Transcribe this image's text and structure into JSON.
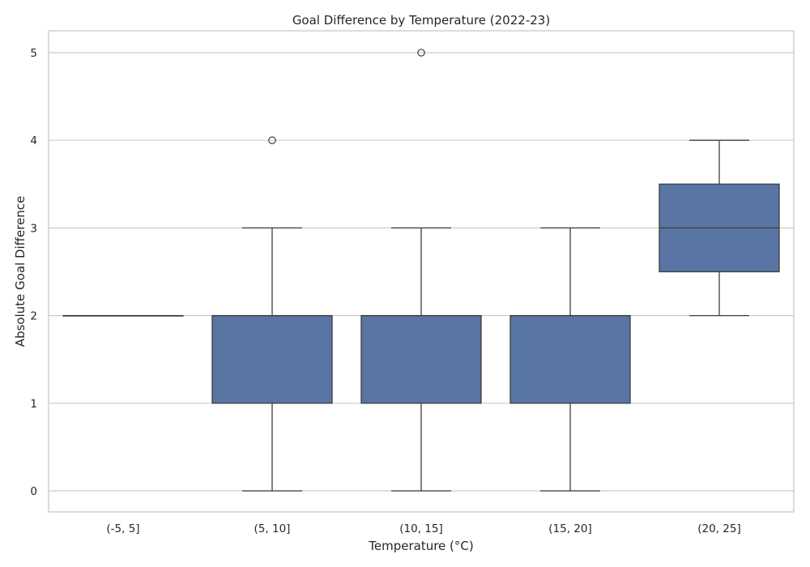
{
  "chart_data": {
    "type": "box",
    "title": "Goal Difference by Temperature (2022-23)",
    "xlabel": "Temperature (°C)",
    "ylabel": "Absolute Goal Difference",
    "ylim": [
      -0.25,
      5.25
    ],
    "yticks": [
      0,
      1,
      2,
      3,
      4,
      5
    ],
    "grid": "horizontal",
    "colors": {
      "box": "#5875a4",
      "line": "#3d3d3d",
      "grid": "#cccccc"
    },
    "categories": [
      "(-5, 5]",
      "(5, 10]",
      "(10, 15]",
      "(15, 20]",
      "(20, 25]"
    ],
    "boxes": [
      {
        "category": "(-5, 5]",
        "whisker_low": 2,
        "q1": 2,
        "median": 2,
        "q3": 2,
        "whisker_high": 2,
        "outliers": []
      },
      {
        "category": "(5, 10]",
        "whisker_low": 0,
        "q1": 1,
        "median": 2,
        "q3": 2,
        "whisker_high": 3,
        "outliers": [
          4
        ]
      },
      {
        "category": "(10, 15]",
        "whisker_low": 0,
        "q1": 1,
        "median": 2,
        "q3": 2,
        "whisker_high": 3,
        "outliers": [
          5
        ]
      },
      {
        "category": "(15, 20]",
        "whisker_low": 0,
        "q1": 1,
        "median": 2,
        "q3": 2,
        "whisker_high": 3,
        "outliers": []
      },
      {
        "category": "(20, 25]",
        "whisker_low": 2,
        "q1": 2.5,
        "median": 3,
        "q3": 3.5,
        "whisker_high": 4,
        "outliers": []
      }
    ]
  }
}
